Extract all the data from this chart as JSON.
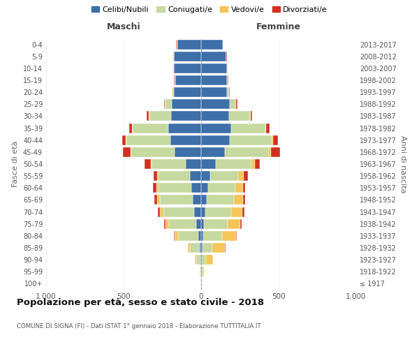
{
  "age_groups": [
    "100+",
    "95-99",
    "90-94",
    "85-89",
    "80-84",
    "75-79",
    "70-74",
    "65-69",
    "60-64",
    "55-59",
    "50-54",
    "45-49",
    "40-44",
    "35-39",
    "30-34",
    "25-29",
    "20-24",
    "15-19",
    "10-14",
    "5-9",
    "0-4"
  ],
  "birth_years": [
    "≤ 1917",
    "1918-1922",
    "1923-1927",
    "1928-1932",
    "1933-1937",
    "1938-1942",
    "1943-1947",
    "1948-1952",
    "1953-1957",
    "1958-1962",
    "1963-1967",
    "1968-1972",
    "1973-1977",
    "1978-1982",
    "1983-1987",
    "1988-1992",
    "1993-1997",
    "1998-2002",
    "2003-2007",
    "2008-2012",
    "2013-2017"
  ],
  "maschi": {
    "celibi": [
      2,
      2,
      5,
      10,
      20,
      30,
      45,
      55,
      65,
      70,
      100,
      170,
      200,
      210,
      195,
      190,
      175,
      165,
      175,
      175,
      155
    ],
    "coniugati": [
      2,
      5,
      25,
      60,
      130,
      175,
      200,
      210,
      210,
      205,
      220,
      280,
      280,
      230,
      140,
      40,
      10,
      5,
      2,
      2,
      2
    ],
    "vedovi": [
      0,
      2,
      10,
      15,
      20,
      25,
      20,
      20,
      15,
      10,
      5,
      5,
      5,
      5,
      5,
      2,
      2,
      2,
      2,
      2,
      2
    ],
    "divorziati": [
      0,
      0,
      2,
      2,
      5,
      10,
      15,
      15,
      20,
      20,
      40,
      50,
      25,
      20,
      10,
      5,
      2,
      2,
      2,
      2,
      2
    ]
  },
  "femmine": {
    "nubili": [
      2,
      2,
      5,
      10,
      15,
      20,
      25,
      35,
      45,
      60,
      95,
      155,
      185,
      195,
      180,
      185,
      165,
      165,
      165,
      160,
      140
    ],
    "coniugate": [
      2,
      5,
      25,
      60,
      120,
      150,
      170,
      175,
      175,
      180,
      230,
      280,
      270,
      220,
      135,
      40,
      15,
      5,
      2,
      2,
      2
    ],
    "vedove": [
      2,
      10,
      45,
      85,
      90,
      80,
      70,
      60,
      50,
      35,
      20,
      15,
      10,
      5,
      5,
      2,
      2,
      2,
      2,
      2,
      2
    ],
    "divorziate": [
      0,
      0,
      2,
      2,
      5,
      10,
      15,
      15,
      15,
      25,
      35,
      60,
      30,
      20,
      10,
      5,
      2,
      2,
      2,
      2,
      2
    ]
  },
  "colors": {
    "celibi_nubili": "#3d6fa8",
    "coniugati": "#c5d9a0",
    "vedovi": "#f5c55a",
    "divorziati": "#d03020"
  },
  "xlim": 1000,
  "title": "Popolazione per età, sesso e stato civile - 2018",
  "subtitle": "COMUNE DI SIGNA (FI) - Dati ISTAT 1° gennaio 2018 - Elaborazione TUTTITALIA.IT",
  "ylabel_left": "Fasce di età",
  "ylabel_right": "Anni di nascita",
  "legend_labels": [
    "Celibi/Nubili",
    "Coniugati/e",
    "Vedovi/e",
    "Divorziati/e"
  ],
  "maschi_label": "Maschi",
  "femmine_label": "Femmine"
}
